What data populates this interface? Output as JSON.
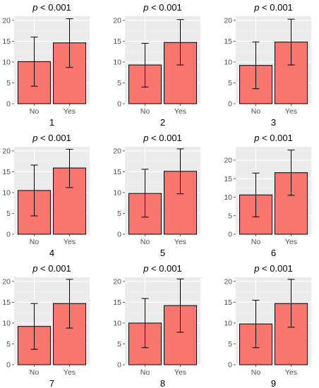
{
  "chart_data": [
    {
      "type": "bar",
      "panel_label": "1",
      "title_var": "p",
      "title_rest": " < 0.001",
      "categories": [
        "No",
        "Yes"
      ],
      "values": [
        10.1,
        14.6
      ],
      "error_low": [
        4.2,
        8.7
      ],
      "error_high": [
        16.0,
        20.4
      ],
      "ylim": [
        0,
        21
      ],
      "yticks": [
        0,
        5,
        10,
        15,
        20
      ]
    },
    {
      "type": "bar",
      "panel_label": "2",
      "title_var": "p",
      "title_rest": " < 0.001",
      "categories": [
        "No",
        "Yes"
      ],
      "values": [
        9.3,
        14.7
      ],
      "error_low": [
        4.0,
        9.3
      ],
      "error_high": [
        14.5,
        20.2
      ],
      "ylim": [
        0,
        21
      ],
      "yticks": [
        0,
        5,
        10,
        15,
        20
      ]
    },
    {
      "type": "bar",
      "panel_label": "3",
      "title_var": "p",
      "title_rest": " < 0.001",
      "categories": [
        "No",
        "Yes"
      ],
      "values": [
        9.2,
        14.8
      ],
      "error_low": [
        3.6,
        9.3
      ],
      "error_high": [
        14.8,
        20.3
      ],
      "ylim": [
        0,
        21
      ],
      "yticks": [
        0,
        5,
        10,
        15,
        20
      ]
    },
    {
      "type": "bar",
      "panel_label": "4",
      "title_var": "p",
      "title_rest": " < 0.001",
      "categories": [
        "No",
        "Yes"
      ],
      "values": [
        10.5,
        15.9
      ],
      "error_low": [
        4.4,
        11.2
      ],
      "error_high": [
        16.6,
        20.4
      ],
      "ylim": [
        0,
        21
      ],
      "yticks": [
        0,
        5,
        10,
        15,
        20
      ]
    },
    {
      "type": "bar",
      "panel_label": "5",
      "title_var": "p",
      "title_rest": " < 0.001",
      "categories": [
        "No",
        "Yes"
      ],
      "values": [
        9.8,
        15.1
      ],
      "error_low": [
        4.1,
        9.7
      ],
      "error_high": [
        15.6,
        20.5
      ],
      "ylim": [
        0,
        21
      ],
      "yticks": [
        0,
        5,
        10,
        15,
        20
      ]
    },
    {
      "type": "bar",
      "panel_label": "6",
      "title_var": "p",
      "title_rest": " < 0.001",
      "categories": [
        "No",
        "Yes"
      ],
      "values": [
        10.6,
        16.6
      ],
      "error_low": [
        4.7,
        10.5
      ],
      "error_high": [
        16.5,
        22.7
      ],
      "ylim": [
        0,
        23.6
      ],
      "yticks": [
        0,
        5,
        10,
        15,
        20
      ]
    },
    {
      "type": "bar",
      "panel_label": "7",
      "title_var": "p",
      "title_rest": " < 0.001",
      "categories": [
        "No",
        "Yes"
      ],
      "values": [
        9.2,
        14.7
      ],
      "error_low": [
        3.7,
        8.8
      ],
      "error_high": [
        14.7,
        20.5
      ],
      "ylim": [
        0,
        21
      ],
      "yticks": [
        0,
        5,
        10,
        15,
        20
      ]
    },
    {
      "type": "bar",
      "panel_label": "8",
      "title_var": "p",
      "title_rest": " < 0.001",
      "categories": [
        "No",
        "Yes"
      ],
      "values": [
        10.0,
        14.2
      ],
      "error_low": [
        4.1,
        7.8
      ],
      "error_high": [
        15.9,
        20.6
      ],
      "ylim": [
        0,
        21
      ],
      "yticks": [
        0,
        5,
        10,
        15,
        20
      ]
    },
    {
      "type": "bar",
      "panel_label": "9",
      "title_var": "p",
      "title_rest": " < 0.001",
      "categories": [
        "No",
        "Yes"
      ],
      "values": [
        9.8,
        14.7
      ],
      "error_low": [
        4.1,
        9.0
      ],
      "error_high": [
        15.5,
        20.5
      ],
      "ylim": [
        0,
        21
      ],
      "yticks": [
        0,
        5,
        10,
        15,
        20
      ]
    }
  ],
  "colors": {
    "bar_fill": "#F8766D",
    "bar_stroke": "#000000",
    "panel_background": "#EBEBEB",
    "grid_major": "#FFFFFF",
    "grid_minor": "#F5F5F5",
    "tick_text": "#4D4D4D"
  }
}
